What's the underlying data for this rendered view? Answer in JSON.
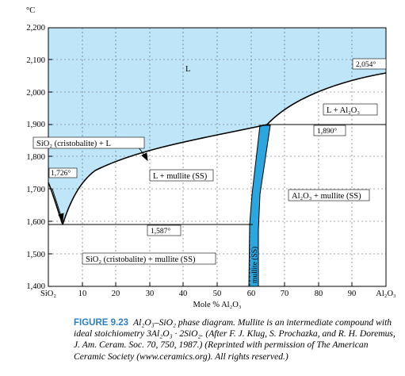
{
  "diagram": {
    "unit_label": "°C",
    "y_ticks": [
      "2,200",
      "2,100",
      "2,000",
      "1,900",
      "1,800",
      "1,700",
      "1,600",
      "1,500",
      "1,400"
    ],
    "x_ticks": [
      "SiO₂",
      "10",
      "20",
      "30",
      "40",
      "50",
      "60",
      "70",
      "80",
      "90",
      "Al₂O₃"
    ],
    "x_axis_label": "Mole % Al₂O₃",
    "regions": {
      "liquid": "L",
      "cristobalite_liquid": "SiO₂ (cristobalite) + L",
      "liquid_mullite": "L + mullite (SS)",
      "liquid_alumina": "L + Al₂O₃",
      "alumina_mullite": "Al₂O₃ + mullite (SS)",
      "cristobalite_mullite": "SiO₂ (cristobalite) + mullite (SS)",
      "mullite": "mullite (SS)"
    },
    "temperatures": {
      "alumina_melting": "2,054°",
      "peritectic": "1,890°",
      "cristobalite_melting": "1,726°",
      "eutectic": "1,587°"
    },
    "colors": {
      "liquid_fill": "#bfe6f8",
      "mullite_fill": "#2ba6df",
      "lines": "#000000"
    }
  },
  "caption": {
    "figure_number": "FIGURE 9.23",
    "heading": "Al₂O₃–SiO₂ phase diagram. Mullite is an intermediate compound with ideal stoichiometry 3Al₂O₃ · 2SiO₂. (After F. J. Klug, S. Prochazka, and R. H. Doremus, J. Am. Ceram. Soc. 70, 750, 1987.) (Reprinted with permission of The American Ceramic Society (www.ceramics.org). All rights reserved.)"
  }
}
